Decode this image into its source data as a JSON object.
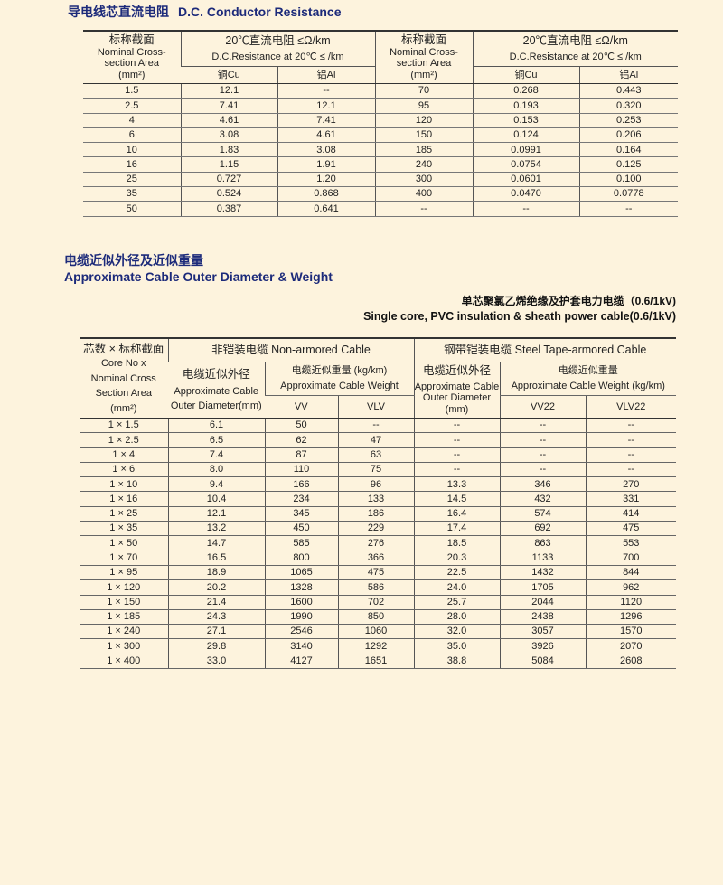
{
  "section1": {
    "title_cn": "导电线芯直流电阻",
    "title_en": "D.C. Conductor Resistance",
    "headers": {
      "area_cn": "标称截面",
      "area_en": "Nominal Cross-section Area",
      "area_unit": "(mm²)",
      "res_cn": "20℃直流电阻 ≤Ω/km",
      "res_en": "D.C.Resistance at 20℃ ≤ /km",
      "cu": "铜Cu",
      "al": "铝Al"
    },
    "rows": [
      [
        "1.5",
        "12.1",
        "--",
        "70",
        "0.268",
        "0.443"
      ],
      [
        "2.5",
        "7.41",
        "12.1",
        "95",
        "0.193",
        "0.320"
      ],
      [
        "4",
        "4.61",
        "7.41",
        "120",
        "0.153",
        "0.253"
      ],
      [
        "6",
        "3.08",
        "4.61",
        "150",
        "0.124",
        "0.206"
      ],
      [
        "10",
        "1.83",
        "3.08",
        "185",
        "0.0991",
        "0.164"
      ],
      [
        "16",
        "1.15",
        "1.91",
        "240",
        "0.0754",
        "0.125"
      ],
      [
        "25",
        "0.727",
        "1.20",
        "300",
        "0.0601",
        "0.100"
      ],
      [
        "35",
        "0.524",
        "0.868",
        "400",
        "0.0470",
        "0.0778"
      ],
      [
        "50",
        "0.387",
        "0.641",
        "--",
        "--",
        "--"
      ]
    ]
  },
  "section2": {
    "title_cn": "电缆近似外径及近似重量",
    "title_en": "Approximate Cable Outer Diameter  & Weight",
    "subtitle_cn": "单芯聚氯乙烯绝缘及护套电力电缆（0.6/1kV)",
    "subtitle_en": "Single core, PVC insulation & sheath power cable(0.6/1kV)",
    "headers": {
      "core_cn": "芯数 × 标称截面",
      "core_en1": "Core No x",
      "core_en2": "Nominal Cross",
      "core_en3": "Section Area",
      "core_unit": "(mm²)",
      "nonarm": "非铠装电缆    Non-armored Cable",
      "arm": "钢带铠装电缆    Steel Tape-armored Cable",
      "od_cn": "电缆近似外径",
      "od_en1": "Approximate Cable",
      "od_en2": "Outer Diameter(mm)",
      "wt_cn": "电缆近似重量 (kg/km)",
      "wt_en": "Approximate Cable Weight",
      "od2_cn": "电缆近似外径",
      "od2_en1": "Approximate Cable",
      "od2_en2": "Outer Diameter",
      "od2_unit": "(mm)",
      "wt2_cn": "电缆近似重量",
      "wt2_en": "Approximate Cable Weight  (kg/km)",
      "vv": "VV",
      "vlv": "VLV",
      "vv22": "VV22",
      "vlv22": "VLV22"
    },
    "rows": [
      [
        "1 × 1.5",
        "6.1",
        "50",
        "--",
        "--",
        "--",
        "--"
      ],
      [
        "1 × 2.5",
        "6.5",
        "62",
        "47",
        "--",
        "--",
        "--"
      ],
      [
        "1 × 4",
        "7.4",
        "87",
        "63",
        "--",
        "--",
        "--"
      ],
      [
        "1 × 6",
        "8.0",
        "110",
        "75",
        "--",
        "--",
        "--"
      ],
      [
        "1 × 10",
        "9.4",
        "166",
        "96",
        "13.3",
        "346",
        "270"
      ],
      [
        "1 × 16",
        "10.4",
        "234",
        "133",
        "14.5",
        "432",
        "331"
      ],
      [
        "1 × 25",
        "12.1",
        "345",
        "186",
        "16.4",
        "574",
        "414"
      ],
      [
        "1 × 35",
        "13.2",
        "450",
        "229",
        "17.4",
        "692",
        "475"
      ],
      [
        "1 × 50",
        "14.7",
        "585",
        "276",
        "18.5",
        "863",
        "553"
      ],
      [
        "1 × 70",
        "16.5",
        "800",
        "366",
        "20.3",
        "1133",
        "700"
      ],
      [
        "1 × 95",
        "18.9",
        "1065",
        "475",
        "22.5",
        "1432",
        "844"
      ],
      [
        "1 × 120",
        "20.2",
        "1328",
        "586",
        "24.0",
        "1705",
        "962"
      ],
      [
        "1 × 150",
        "21.4",
        "1600",
        "702",
        "25.7",
        "2044",
        "1120"
      ],
      [
        "1 × 185",
        "24.3",
        "1990",
        "850",
        "28.0",
        "2438",
        "1296"
      ],
      [
        "1 × 240",
        "27.1",
        "2546",
        "1060",
        "32.0",
        "3057",
        "1570"
      ],
      [
        "1 × 300",
        "29.8",
        "3140",
        "1292",
        "35.0",
        "3926",
        "2070"
      ],
      [
        "1 × 400",
        "33.0",
        "4127",
        "1651",
        "38.8",
        "5084",
        "2608"
      ]
    ]
  }
}
